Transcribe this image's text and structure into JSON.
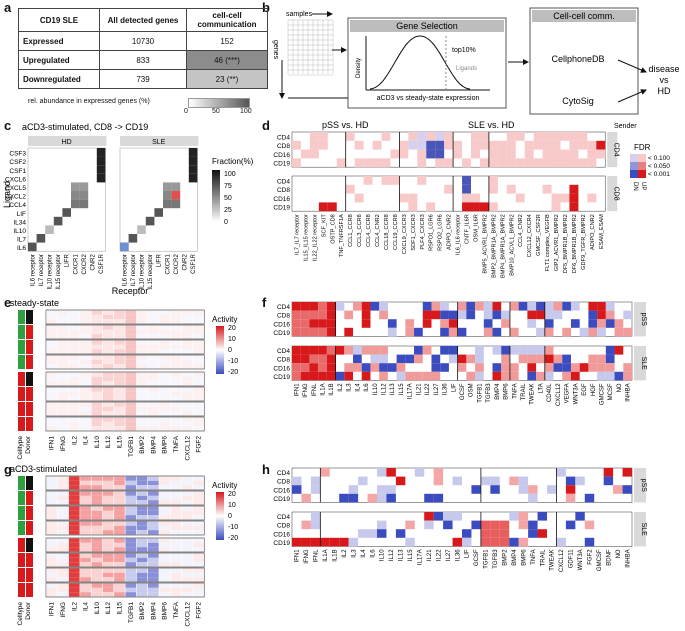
{
  "panel_letters": [
    "a",
    "b",
    "c",
    "d",
    "e",
    "f",
    "g",
    "h"
  ],
  "panel_a": {
    "headers": [
      "CD19 SLE",
      "All detected genes",
      "cell-cell communication"
    ],
    "rows": [
      {
        "label": "Expressed",
        "all": "10730",
        "ccc": "152",
        "shade": "#ffffff"
      },
      {
        "label": "Upregulated",
        "all": "833",
        "ccc": "46 (***)",
        "shade": "#8c8c8c"
      },
      {
        "label": "Downregulated",
        "all": "739",
        "ccc": "23 (**)",
        "shade": "#c4c4c4"
      }
    ],
    "legend_label": "rel. abundance in expressed genes (%)",
    "legend_ticks": [
      "0",
      "50",
      "100"
    ]
  },
  "panel_b": {
    "samples_label": "samples",
    "genes_label": "genes",
    "gene_selection": "Gene Selection",
    "top10": "top10%",
    "density": "Density",
    "ligands": "Ligands",
    "xaxis": "aCD3 vs steady-state expression",
    "cellcell": "Cell-cell comm.",
    "cellphonedb": "CellphoneDB",
    "cytosig": "CytoSig",
    "outcome_lines": [
      "disease",
      "vs",
      "HD"
    ]
  },
  "panel_c": {
    "title": "aCD3-stimulated, CD8 -> CD19",
    "facets": [
      "HD",
      "SLE"
    ],
    "ylabel": "Ligand",
    "xlabel": "Receptor",
    "ligands": [
      "CSF3",
      "CSF2",
      "CSF1",
      "CXCL6",
      "CXCL5",
      "CXCL2",
      "CCL4",
      "LIF",
      "IL34",
      "IL10",
      "IL7",
      "IL6"
    ],
    "receptors": [
      "IL6 receptor",
      "IL7 receptor",
      "IL10 receptor",
      "IL15 receptor",
      "LIFR",
      "CXCR1",
      "CXCR2",
      "CNR2",
      "CSF1R"
    ],
    "legend_title": "Fraction(%)",
    "legend_ticks": [
      "100",
      "75",
      "50",
      "25",
      "0"
    ]
  },
  "panel_d": {
    "groups": [
      "pSS vs. HD",
      "SLE vs. HD"
    ],
    "sender": "Sender",
    "rows": [
      "CD4",
      "CD8",
      "CD16",
      "CD19"
    ],
    "facets": [
      "CD4",
      "CD8"
    ],
    "columns": [
      "IL7_IL7 receptor",
      "IL15_IL15 receptor",
      "IL22_IL22 receptor",
      "SCF_KIT",
      "OSTP_CD8",
      "TNF_TNFRSF1A",
      "CCL1_CCR8",
      "CCL3_CCR8",
      "CCL4_CCR8",
      "CCL4_CNR2",
      "CCL18_CCR8",
      "CCL19_CCR8",
      "CXCL9_CXCR3",
      "SDF1_CXCR3",
      "PLF4_CXCR3",
      "RSPO1_LGR6",
      "RSPO2_LGR6",
      "ADIPO_CNR2",
      "IL6_IL6 receptor",
      "CNTF_IL6R",
      "OSM_IL6R",
      "BMP5_ACVR1_BMPR2",
      "BMP2_BMPR1A_BMPR2",
      "BMP4_BMPR1A_BMPR2",
      "BMP10_ACVL1_BMPR2",
      "CCL4_CNR2",
      "CXCL12_CXCR4",
      "GMCSF_CSF2R",
      "FLT1 complex_VEGFB",
      "GIP2_ACVR1_BMPR2",
      "DF5_BMPR1B_BMPR2",
      "DF6_BMPR1B_BMPR2",
      "GDF9_TGFR_BMPR2",
      "ADIPO_CNR2",
      "ESAM_ESAM"
    ],
    "legend_title": "FDR",
    "legend_labels": [
      "< 0.100",
      "< 0.050",
      "< 0.001"
    ],
    "legend_side": [
      "DN",
      "UP"
    ]
  },
  "panel_e": {
    "title": "steady-state",
    "legend_title": "Activity",
    "legend_ticks": [
      "20",
      "10",
      "0",
      "-10",
      "-20"
    ],
    "row_annot": [
      "Celltype",
      "Donor"
    ],
    "columns": [
      "IFN1",
      "IFNG",
      "IL2",
      "IL4",
      "IL10",
      "IL12",
      "IL15",
      "TGFB1",
      "BMP2",
      "BMP4",
      "BMP6",
      "TNFA",
      "CXCL12",
      "FGF2"
    ]
  },
  "panel_f": {
    "rows": [
      "CD4",
      "CD8",
      "CD16",
      "CD19"
    ],
    "facets": [
      "pSS",
      "SLE"
    ],
    "columns": [
      "IFN1",
      "IFNG",
      "IFNL",
      "IL1A",
      "IL1B",
      "IL2",
      "IL3",
      "IL4",
      "IL6",
      "IL10",
      "IL12",
      "IL13",
      "IL15",
      "IL17A",
      "IL21",
      "IL22",
      "IL27",
      "IL36",
      "LIF",
      "GCSF",
      "OSM",
      "TGFB1",
      "TGFB3",
      "BMP4",
      "BMP6",
      "TNFA",
      "TRAIL",
      "TWEAK",
      "LTA",
      "CD40L",
      "CXCL12",
      "VEGFA",
      "WNT3A",
      "EGF",
      "HGF",
      "GMCSF",
      "MCSF",
      "NO",
      "INHBA"
    ]
  },
  "panel_g": {
    "title": "aCD3-stimulated",
    "legend_title": "Activity",
    "legend_ticks": [
      "20",
      "10",
      "0",
      "-10",
      "-20"
    ],
    "row_annot": [
      "Celltype",
      "Donor"
    ],
    "columns": [
      "IFN1",
      "IFNG",
      "IL2",
      "IL4",
      "IL10",
      "IL12",
      "IL15",
      "TGFB1",
      "BMP2",
      "BMP4",
      "BMP6",
      "TNFA",
      "CXCL12",
      "FGF2"
    ]
  },
  "panel_h": {
    "rows": [
      "CD4",
      "CD8",
      "CD16",
      "CD19"
    ],
    "facets": [
      "pSS",
      "SLE"
    ],
    "columns": [
      "IFN1",
      "IFNG",
      "IFNL",
      "IL1A",
      "IL1B",
      "IL2",
      "IL3",
      "IL4",
      "IL6",
      "IL10",
      "IL12",
      "IL13",
      "IL15",
      "IL17A",
      "IL21",
      "IL22",
      "IL27",
      "IL36",
      "LIF",
      "GCSF",
      "TGFB1",
      "TGFB3",
      "BMP2",
      "BMP4",
      "BMP6",
      "TNFA",
      "TRAIL",
      "TWEAK",
      "CXCL12",
      "GDF11",
      "WNT3A",
      "FGF2",
      "GMCSF",
      "BDNF",
      "NO",
      "INHBA"
    ]
  },
  "colors": {
    "red": "#d7191c",
    "pink": "#f4a6a6",
    "blue": "#3b4cc0",
    "lightblue": "#c6c8ec",
    "green": "#2e9e3e",
    "black": "#111111",
    "grey": "#9a9a9a",
    "facet": "#d9d9d9"
  }
}
